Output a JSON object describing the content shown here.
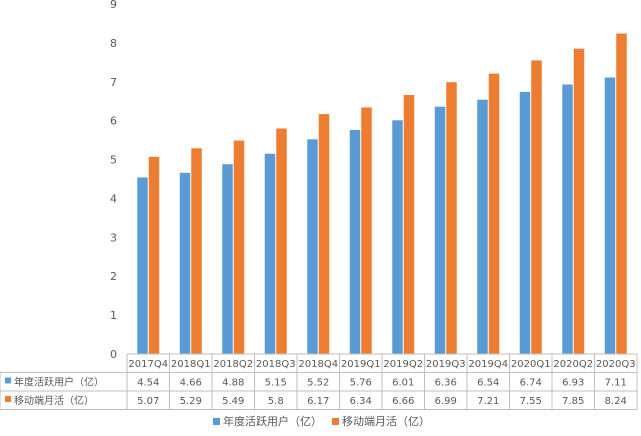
{
  "chart_data": {
    "type": "bar",
    "categories": [
      "2017Q4",
      "2018Q1",
      "2018Q2",
      "2018Q3",
      "2018Q4",
      "2019Q1",
      "2019Q2",
      "2019Q3",
      "2019Q4",
      "2020Q1",
      "2020Q2",
      "2020Q3"
    ],
    "series": [
      {
        "name": "年度活跃用户（亿）",
        "values": [
          4.54,
          4.66,
          4.88,
          5.15,
          5.52,
          5.76,
          6.01,
          6.36,
          6.54,
          6.74,
          6.93,
          7.11
        ],
        "color": "#5b9bd5"
      },
      {
        "name": "移动端月活（亿）",
        "values": [
          5.07,
          5.29,
          5.49,
          5.8,
          6.17,
          6.34,
          6.66,
          6.99,
          7.21,
          7.55,
          7.85,
          8.24
        ],
        "color": "#ed7d31"
      }
    ],
    "y_ticks": [
      "0",
      "1",
      "2",
      "3",
      "4",
      "5",
      "6",
      "7",
      "8",
      "9"
    ],
    "ylim": [
      0,
      9
    ],
    "grid": false,
    "legend": "bottom",
    "data_table": true,
    "table_rows": [
      {
        "label": "年度活跃用户（亿）",
        "cells": [
          "4.54",
          "4.66",
          "4.88",
          "5.15",
          "5.52",
          "5.76",
          "6.01",
          "6.36",
          "6.54",
          "6.74",
          "6.93",
          "7.11"
        ]
      },
      {
        "label": "移动端月活（亿）",
        "cells": [
          "5.07",
          "5.29",
          "5.49",
          "5.8",
          "6.17",
          "6.34",
          "6.66",
          "6.99",
          "7.21",
          "7.55",
          "7.85",
          "8.24"
        ]
      }
    ]
  }
}
